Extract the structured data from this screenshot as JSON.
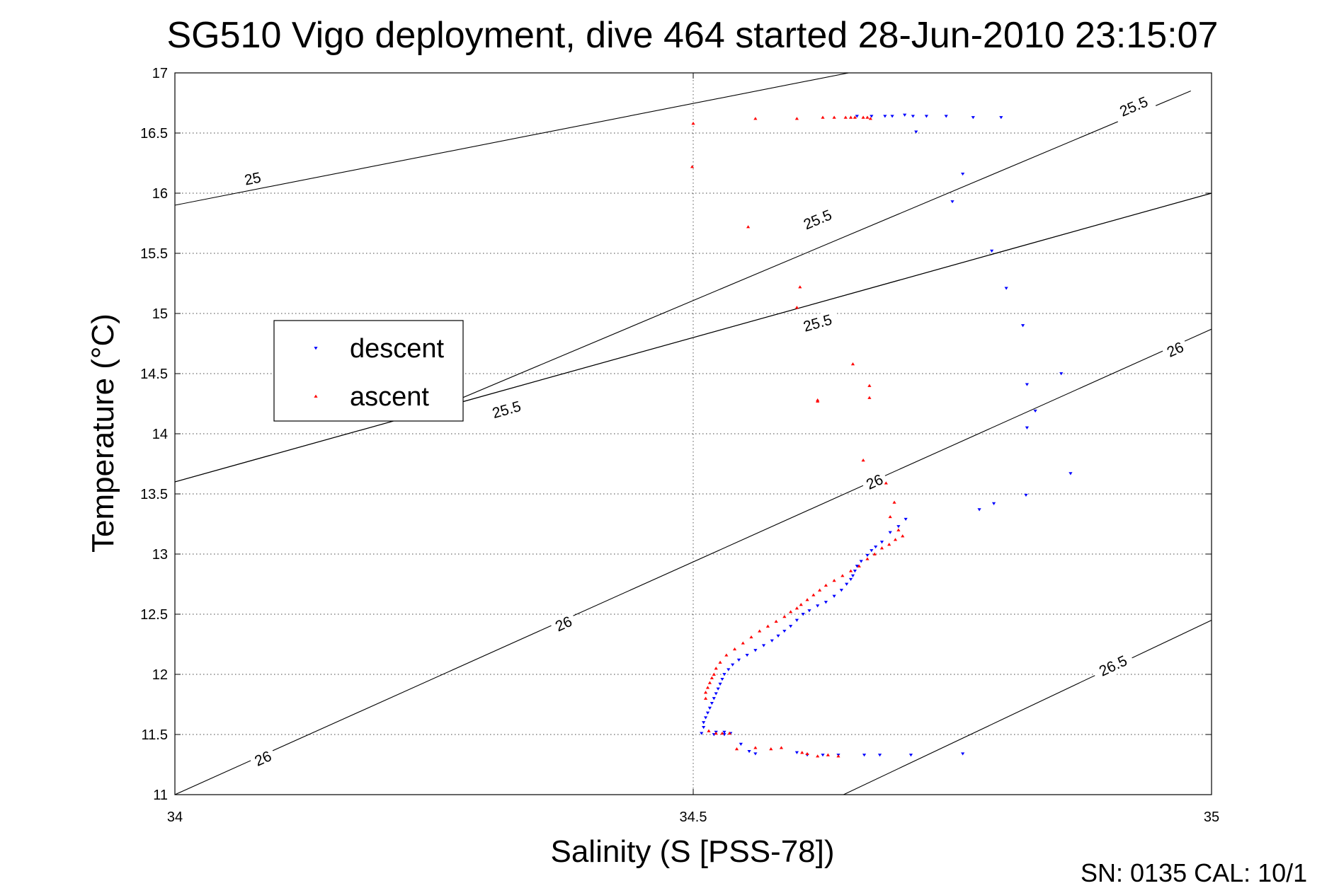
{
  "chart_data": {
    "type": "scatter",
    "title": "SG510 Vigo deployment, dive 464 started 28-Jun-2010 23:15:07",
    "xlabel": "Salinity (S [PSS-78])",
    "ylabel": "Temperature (°C)",
    "xlim": [
      34,
      35
    ],
    "ylim": [
      11,
      17
    ],
    "xticks": [
      34,
      34.5,
      35
    ],
    "xtick_labels": [
      "34",
      "34.5",
      "35"
    ],
    "yticks": [
      11,
      11.5,
      12,
      12.5,
      13,
      13.5,
      14,
      14.5,
      15,
      15.5,
      16,
      16.5,
      17
    ],
    "ytick_labels": [
      "11",
      "11.5",
      "12",
      "12.5",
      "13",
      "13.5",
      "14",
      "14.5",
      "15",
      "15.5",
      "16",
      "16.5",
      "17"
    ],
    "grid": true,
    "legend_position": "middle-left",
    "footer": "SN: 0135  CAL: 10/1",
    "density_contours": [
      {
        "level": 25,
        "points": [
          [
            34,
            15.9
          ],
          [
            34.65,
            17.0
          ]
        ],
        "labels": [
          {
            "text": "25",
            "x": 34.075,
            "y": 16.12
          }
        ]
      },
      {
        "level": 25.5,
        "points": [
          [
            34,
            13.6
          ],
          [
            35,
            16.0
          ]
        ],
        "labels": [
          {
            "text": "25.5",
            "x": 34.32,
            "y": 14.2
          },
          {
            "text": "25.5",
            "x": 34.62,
            "y": 14.92
          }
        ]
      },
      {
        "level": 25.5,
        "points": [
          [
            34.0,
            13.6
          ],
          [
            35,
            16.0
          ]
        ],
        "labels": []
      },
      {
        "level": 25.5,
        "points": [
          [
            34.25,
            14.2
          ],
          [
            34.98,
            16.85
          ]
        ],
        "labels": [
          {
            "text": "25.5",
            "x": 34.62,
            "y": 15.78
          },
          {
            "text": "25.5",
            "x": 34.925,
            "y": 16.72
          }
        ]
      },
      {
        "level": 26,
        "points": [
          [
            34,
            11.0
          ],
          [
            35,
            14.87
          ]
        ],
        "labels": [
          {
            "text": "26",
            "x": 34.085,
            "y": 11.3
          },
          {
            "text": "26",
            "x": 34.375,
            "y": 12.42
          },
          {
            "text": "26",
            "x": 34.675,
            "y": 13.6
          },
          {
            "text": "26",
            "x": 34.965,
            "y": 14.7
          }
        ]
      },
      {
        "level": 26.5,
        "points": [
          [
            34.645,
            11.0
          ],
          [
            35,
            12.45
          ]
        ],
        "labels": [
          {
            "text": "26.5",
            "x": 34.905,
            "y": 12.07
          }
        ]
      }
    ],
    "series": [
      {
        "name": "descent",
        "color": "#0000ff",
        "marker": "triangle-down",
        "points": [
          [
            34.658,
            16.64
          ],
          [
            34.672,
            16.64
          ],
          [
            34.685,
            16.64
          ],
          [
            34.692,
            16.64
          ],
          [
            34.704,
            16.65
          ],
          [
            34.712,
            16.64
          ],
          [
            34.725,
            16.64
          ],
          [
            34.744,
            16.64
          ],
          [
            34.77,
            16.63
          ],
          [
            34.797,
            16.63
          ],
          [
            34.715,
            16.51
          ],
          [
            34.76,
            16.16
          ],
          [
            34.75,
            15.93
          ],
          [
            34.788,
            15.52
          ],
          [
            34.802,
            15.21
          ],
          [
            34.818,
            14.9
          ],
          [
            34.855,
            14.5
          ],
          [
            34.822,
            14.41
          ],
          [
            34.83,
            14.19
          ],
          [
            34.822,
            14.05
          ],
          [
            34.864,
            13.67
          ],
          [
            34.821,
            13.49
          ],
          [
            34.79,
            13.42
          ],
          [
            34.776,
            13.37
          ],
          [
            34.705,
            13.29
          ],
          [
            34.698,
            13.23
          ],
          [
            34.69,
            13.18
          ],
          [
            34.682,
            13.1
          ],
          [
            34.676,
            13.06
          ],
          [
            34.672,
            13.03
          ],
          [
            34.668,
            12.99
          ],
          [
            34.662,
            12.94
          ],
          [
            34.658,
            12.9
          ],
          [
            34.656,
            12.86
          ],
          [
            34.654,
            12.82
          ],
          [
            34.652,
            12.79
          ],
          [
            34.648,
            12.75
          ],
          [
            34.643,
            12.7
          ],
          [
            34.636,
            12.65
          ],
          [
            34.628,
            12.6
          ],
          [
            34.62,
            12.57
          ],
          [
            34.612,
            12.53
          ],
          [
            34.606,
            12.5
          ],
          [
            34.6,
            12.45
          ],
          [
            34.594,
            12.4
          ],
          [
            34.588,
            12.36
          ],
          [
            34.582,
            12.32
          ],
          [
            34.576,
            12.28
          ],
          [
            34.568,
            12.24
          ],
          [
            34.56,
            12.2
          ],
          [
            34.552,
            12.16
          ],
          [
            34.544,
            12.12
          ],
          [
            34.538,
            12.08
          ],
          [
            34.534,
            12.04
          ],
          [
            34.53,
            12.0
          ],
          [
            34.528,
            11.96
          ],
          [
            34.526,
            11.92
          ],
          [
            34.524,
            11.88
          ],
          [
            34.522,
            11.84
          ],
          [
            34.52,
            11.8
          ],
          [
            34.518,
            11.76
          ],
          [
            34.516,
            11.72
          ],
          [
            34.514,
            11.68
          ],
          [
            34.512,
            11.64
          ],
          [
            34.51,
            11.6
          ],
          [
            34.51,
            11.56
          ],
          [
            34.522,
            11.52
          ],
          [
            34.53,
            11.52
          ],
          [
            34.536,
            11.51
          ],
          [
            34.53,
            11.5
          ],
          [
            34.52,
            11.5
          ],
          [
            34.508,
            11.51
          ],
          [
            34.546,
            11.42
          ],
          [
            34.554,
            11.36
          ],
          [
            34.56,
            11.34
          ],
          [
            34.6,
            11.35
          ],
          [
            34.61,
            11.33
          ],
          [
            34.625,
            11.33
          ],
          [
            34.64,
            11.33
          ],
          [
            34.665,
            11.33
          ],
          [
            34.68,
            11.33
          ],
          [
            34.71,
            11.33
          ],
          [
            34.76,
            11.34
          ]
        ]
      },
      {
        "name": "ascent",
        "color": "#ff0000",
        "marker": "triangle-up",
        "points": [
          [
            34.5,
            16.58
          ],
          [
            34.499,
            16.22
          ],
          [
            34.553,
            15.72
          ],
          [
            34.56,
            16.62
          ],
          [
            34.6,
            16.62
          ],
          [
            34.625,
            16.63
          ],
          [
            34.636,
            16.63
          ],
          [
            34.647,
            16.63
          ],
          [
            34.652,
            16.63
          ],
          [
            34.656,
            16.63
          ],
          [
            34.664,
            16.63
          ],
          [
            34.668,
            16.63
          ],
          [
            34.671,
            16.62
          ],
          [
            34.6,
            15.05
          ],
          [
            34.603,
            15.22
          ],
          [
            34.62,
            14.28
          ],
          [
            34.62,
            14.27
          ],
          [
            34.654,
            14.58
          ],
          [
            34.67,
            14.4
          ],
          [
            34.67,
            14.3
          ],
          [
            34.664,
            13.78
          ],
          [
            34.686,
            13.59
          ],
          [
            34.694,
            13.43
          ],
          [
            34.69,
            13.31
          ],
          [
            34.698,
            13.2
          ],
          [
            34.702,
            13.15
          ],
          [
            34.695,
            13.12
          ],
          [
            34.689,
            13.08
          ],
          [
            34.682,
            13.05
          ],
          [
            34.675,
            13.0
          ],
          [
            34.668,
            12.96
          ],
          [
            34.66,
            12.9
          ],
          [
            34.652,
            12.86
          ],
          [
            34.644,
            12.82
          ],
          [
            34.636,
            12.78
          ],
          [
            34.628,
            12.74
          ],
          [
            34.622,
            12.7
          ],
          [
            34.616,
            12.66
          ],
          [
            34.61,
            12.62
          ],
          [
            34.604,
            12.58
          ],
          [
            34.6,
            12.55
          ],
          [
            34.594,
            12.52
          ],
          [
            34.588,
            12.48
          ],
          [
            34.58,
            12.44
          ],
          [
            34.572,
            12.4
          ],
          [
            34.564,
            12.36
          ],
          [
            34.556,
            12.31
          ],
          [
            34.548,
            12.26
          ],
          [
            34.54,
            12.21
          ],
          [
            34.532,
            12.16
          ],
          [
            34.526,
            12.1
          ],
          [
            34.522,
            12.05
          ],
          [
            34.52,
            12.0
          ],
          [
            34.518,
            11.97
          ],
          [
            34.516,
            11.93
          ],
          [
            34.514,
            11.89
          ],
          [
            34.512,
            11.85
          ],
          [
            34.512,
            11.8
          ],
          [
            34.515,
            11.53
          ],
          [
            34.522,
            11.51
          ],
          [
            34.528,
            11.51
          ],
          [
            34.535,
            11.51
          ],
          [
            34.542,
            11.38
          ],
          [
            34.56,
            11.39
          ],
          [
            34.575,
            11.38
          ],
          [
            34.585,
            11.39
          ],
          [
            34.605,
            11.35
          ],
          [
            34.61,
            11.34
          ],
          [
            34.62,
            11.32
          ],
          [
            34.63,
            11.33
          ],
          [
            34.64,
            11.32
          ]
        ]
      }
    ]
  }
}
